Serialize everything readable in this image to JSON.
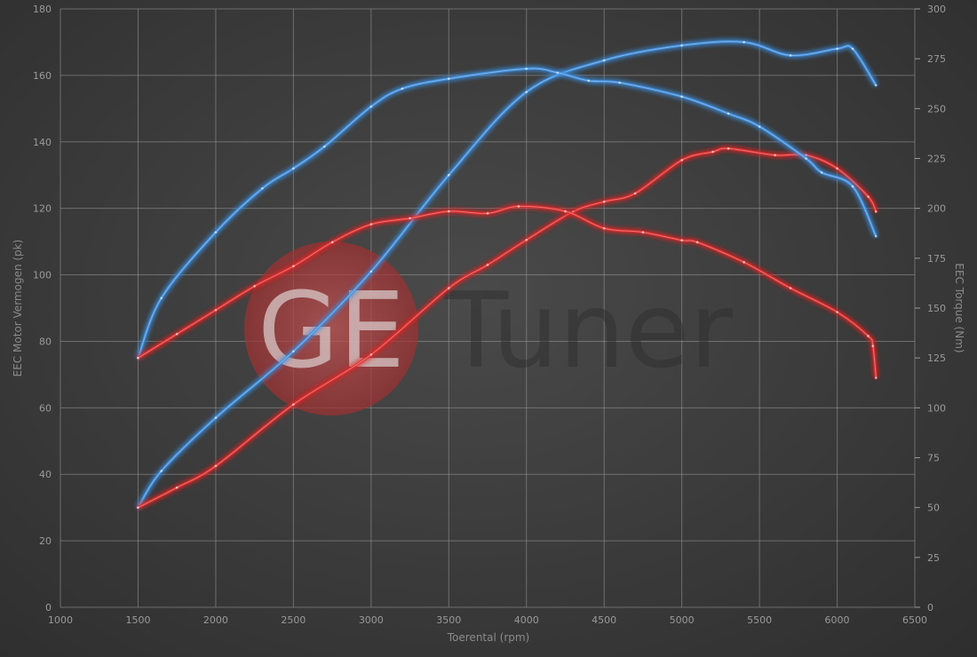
{
  "logo": {
    "text": "GETuner",
    "mark": "GE",
    "word": "Tuner"
  },
  "chart_data": {
    "type": "line",
    "xlabel": "Toerental (rpm)",
    "ylabel_left": "EEC Motor Vermogen (pk)",
    "ylabel_right": "EEC Torque (Nm)",
    "xlim": [
      1000,
      6500
    ],
    "ylim_left": [
      0,
      180
    ],
    "ylim_right": [
      0,
      300
    ],
    "xticks": [
      1000,
      1500,
      2000,
      2500,
      3000,
      3500,
      4000,
      4500,
      5000,
      5500,
      6000,
      6500
    ],
    "yticks_left": [
      0,
      20,
      40,
      60,
      80,
      100,
      120,
      140,
      160,
      180
    ],
    "yticks_right": [
      0,
      25,
      50,
      75,
      100,
      125,
      150,
      175,
      200,
      225,
      250,
      275,
      300
    ],
    "grid": true,
    "colors": {
      "tuned": "#3f8fe0",
      "stock": "#e02a2a"
    },
    "series": [
      {
        "axis": "left",
        "color": "#3f8fe0",
        "x": [
          1500,
          1650,
          2000,
          2500,
          3000,
          3500,
          4000,
          4500,
          5000,
          5400,
          5700,
          6000,
          6100,
          6250
        ],
        "values": [
          30,
          41,
          57,
          77,
          101,
          130,
          155,
          164.5,
          169,
          170,
          166,
          168,
          168,
          157
        ]
      },
      {
        "axis": "left",
        "color": "#e02a2a",
        "x": [
          1500,
          1750,
          2000,
          2500,
          3000,
          3500,
          3750,
          4000,
          4300,
          4500,
          4700,
          5000,
          5200,
          5300,
          5600,
          5800,
          6000,
          6200,
          6250
        ],
        "values": [
          30,
          36,
          42.5,
          61,
          76,
          96,
          103,
          110.5,
          119,
          122,
          124.5,
          134.5,
          137,
          138,
          136,
          136,
          132,
          123.5,
          119
        ]
      },
      {
        "axis": "right",
        "color": "#3f8fe0",
        "x": [
          1500,
          1650,
          2000,
          2300,
          2500,
          2700,
          3000,
          3200,
          3500,
          4000,
          4200,
          4400,
          4600,
          5000,
          5300,
          5500,
          5800,
          5900,
          6100,
          6250
        ],
        "values": [
          125,
          155,
          188,
          210,
          220,
          231,
          251,
          260,
          265,
          270,
          268,
          264,
          263,
          256,
          247.5,
          241,
          225,
          218,
          211,
          186
        ]
      },
      {
        "axis": "right",
        "color": "#e02a2a",
        "x": [
          1500,
          1750,
          2000,
          2250,
          2500,
          2750,
          3000,
          3250,
          3500,
          3750,
          3950,
          4250,
          4500,
          4750,
          5000,
          5100,
          5400,
          5700,
          6000,
          6200,
          6230,
          6250
        ],
        "values": [
          125,
          137,
          149,
          161,
          171,
          183,
          192,
          195,
          198.5,
          197.5,
          201,
          198.5,
          190,
          188,
          184,
          183,
          173,
          160,
          148,
          136,
          131,
          115
        ]
      }
    ]
  }
}
